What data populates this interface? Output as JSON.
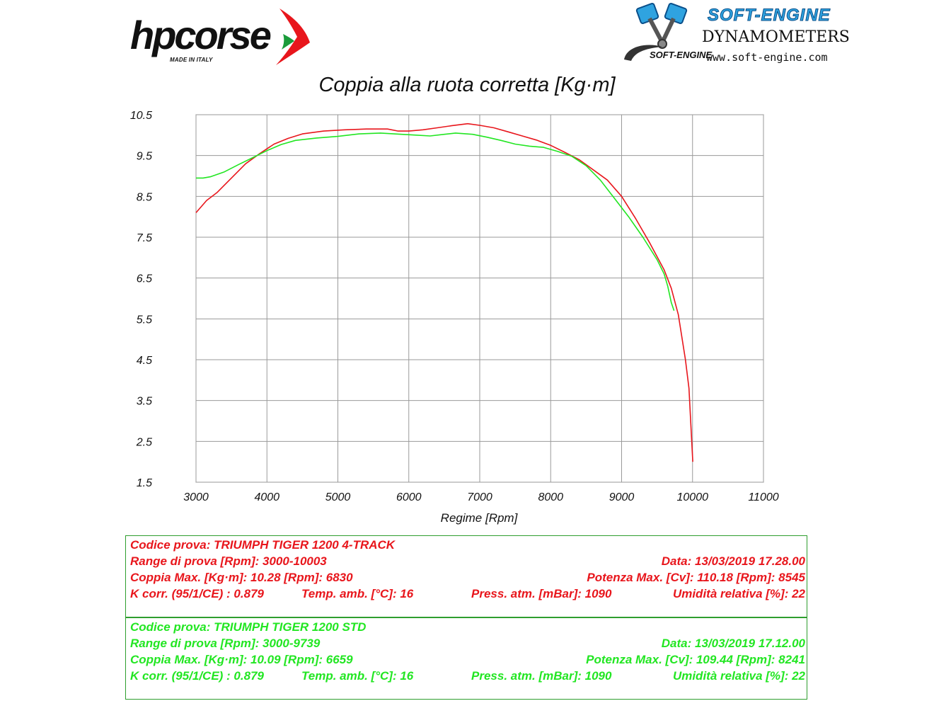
{
  "header": {
    "hp_logo_text": "hpcorse",
    "hp_logo_sub": "MADE IN ITALY",
    "se_brand": "SOFT-ENGINE",
    "se_title": "DYNAMOMETERS",
    "se_url": "www.soft-engine.com",
    "se_mini": "SOFT-ENGINE"
  },
  "chart_data": {
    "type": "line",
    "title": "Coppia alla ruota corretta [Kg·m]",
    "xlabel": "Regime [Rpm]",
    "ylabel": "",
    "xlim": [
      3000,
      11000
    ],
    "ylim": [
      1.5,
      10.5
    ],
    "x_ticks": [
      3000,
      4000,
      5000,
      6000,
      7000,
      8000,
      9000,
      10000,
      11000
    ],
    "y_ticks": [
      10.5,
      9.5,
      8.5,
      7.5,
      6.5,
      5.5,
      4.5,
      3.5,
      2.5,
      1.5
    ],
    "grid": true,
    "series": [
      {
        "color": "#e8161c",
        "points": [
          [
            3000,
            8.1
          ],
          [
            3150,
            8.4
          ],
          [
            3300,
            8.6
          ],
          [
            3500,
            8.95
          ],
          [
            3700,
            9.3
          ],
          [
            3900,
            9.55
          ],
          [
            4100,
            9.78
          ],
          [
            4300,
            9.92
          ],
          [
            4500,
            10.03
          ],
          [
            4800,
            10.1
          ],
          [
            5100,
            10.13
          ],
          [
            5400,
            10.15
          ],
          [
            5700,
            10.15
          ],
          [
            5850,
            10.1
          ],
          [
            6000,
            10.1
          ],
          [
            6200,
            10.13
          ],
          [
            6400,
            10.18
          ],
          [
            6600,
            10.23
          ],
          [
            6830,
            10.28
          ],
          [
            7000,
            10.24
          ],
          [
            7200,
            10.18
          ],
          [
            7400,
            10.08
          ],
          [
            7600,
            9.98
          ],
          [
            7800,
            9.88
          ],
          [
            8000,
            9.75
          ],
          [
            8200,
            9.58
          ],
          [
            8400,
            9.4
          ],
          [
            8600,
            9.15
          ],
          [
            8800,
            8.9
          ],
          [
            9000,
            8.5
          ],
          [
            9200,
            7.95
          ],
          [
            9400,
            7.35
          ],
          [
            9600,
            6.7
          ],
          [
            9700,
            6.25
          ],
          [
            9800,
            5.6
          ],
          [
            9900,
            4.5
          ],
          [
            9950,
            3.8
          ],
          [
            10003,
            2.0
          ]
        ]
      },
      {
        "color": "#22e622",
        "points": [
          [
            3000,
            8.95
          ],
          [
            3100,
            8.95
          ],
          [
            3200,
            8.98
          ],
          [
            3400,
            9.1
          ],
          [
            3600,
            9.28
          ],
          [
            3800,
            9.45
          ],
          [
            4000,
            9.62
          ],
          [
            4200,
            9.77
          ],
          [
            4400,
            9.87
          ],
          [
            4700,
            9.93
          ],
          [
            5000,
            9.97
          ],
          [
            5300,
            10.03
          ],
          [
            5600,
            10.05
          ],
          [
            5900,
            10.02
          ],
          [
            6100,
            10.0
          ],
          [
            6300,
            9.98
          ],
          [
            6500,
            10.02
          ],
          [
            6659,
            10.05
          ],
          [
            6900,
            10.02
          ],
          [
            7100,
            9.95
          ],
          [
            7300,
            9.87
          ],
          [
            7500,
            9.78
          ],
          [
            7700,
            9.73
          ],
          [
            7900,
            9.7
          ],
          [
            8100,
            9.6
          ],
          [
            8300,
            9.48
          ],
          [
            8500,
            9.25
          ],
          [
            8700,
            8.9
          ],
          [
            8900,
            8.45
          ],
          [
            9100,
            8.0
          ],
          [
            9300,
            7.5
          ],
          [
            9500,
            6.95
          ],
          [
            9600,
            6.6
          ],
          [
            9650,
            6.3
          ],
          [
            9700,
            5.9
          ],
          [
            9739,
            5.7
          ]
        ]
      }
    ]
  },
  "info_red": {
    "test_code": "Codice prova: TRIUMPH TIGER 1200 4-TRACK",
    "range": "Range di prova [Rpm]: 3000-10003",
    "date": "Data: 13/03/2019   17.28.00",
    "torque": "Coppia Max. [Kg·m]: 10.28   [Rpm]: 6830",
    "power": "Potenza Max. [Cv]: 110.18   [Rpm]: 8545",
    "k_corr": "K corr. (95/1/CE) : 0.879",
    "temp": "Temp. amb. [°C]: 16",
    "press": "Press. atm. [mBar]: 1090",
    "humidity": "Umidità relativa [%]: 22"
  },
  "info_green": {
    "test_code": "Codice prova: TRIUMPH TIGER 1200 STD",
    "range": "Range di prova [Rpm]: 3000-9739",
    "date": "Data: 13/03/2019   17.12.00",
    "torque": "Coppia Max. [Kg·m]: 10.09   [Rpm]: 6659",
    "power": "Potenza Max. [Cv]: 109.44   [Rpm]: 8241",
    "k_corr": "K corr. (95/1/CE) : 0.879",
    "temp": "Temp. amb. [°C]: 16",
    "press": "Press. atm. [mBar]: 1090",
    "humidity": "Umidità relativa [%]: 22"
  }
}
